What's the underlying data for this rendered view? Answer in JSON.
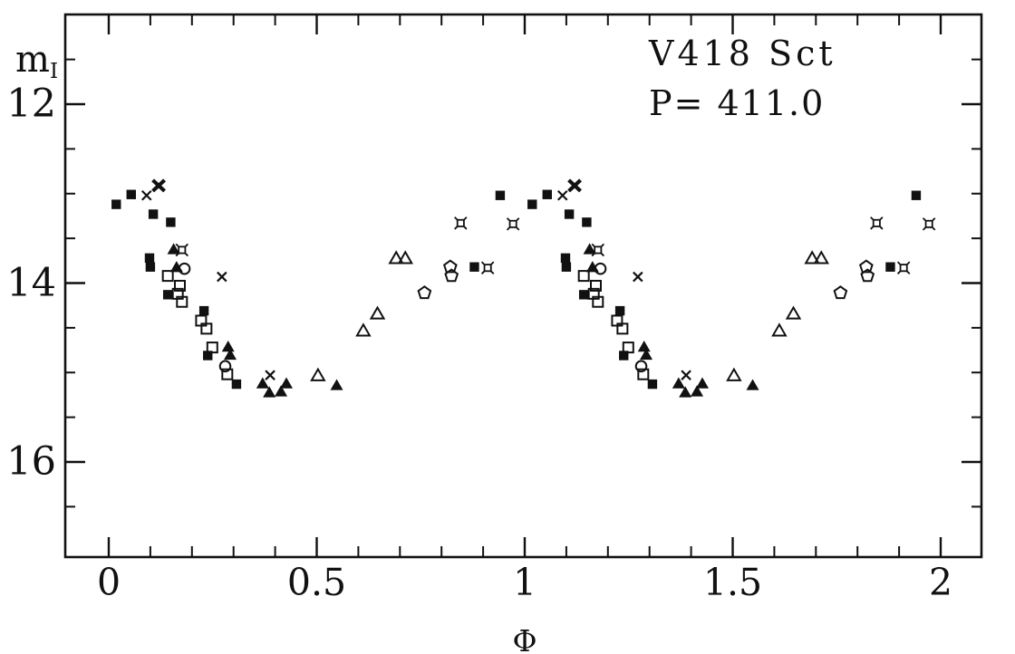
{
  "chart_data": {
    "type": "scatter",
    "title": "V418 Sct",
    "subtitle": "P= 411.0",
    "xlabel": "Φ",
    "ylabel": "m_I",
    "x_range": [
      -0.105,
      2.098
    ],
    "y_range_mag": [
      17.06,
      11.0
    ],
    "y_inverted": true,
    "phase_duplicated": true,
    "grid": false,
    "legend": "none",
    "axes": {
      "x": {
        "label": "Φ",
        "major_ticks": [
          {
            "value": 0,
            "label": "0"
          },
          {
            "value": 0.5,
            "label": "0.5"
          },
          {
            "value": 1,
            "label": "1"
          },
          {
            "value": 1.5,
            "label": "1.5"
          },
          {
            "value": 2,
            "label": "2"
          }
        ],
        "minor_tick_step": 0.1
      },
      "y": {
        "label": "m",
        "label_sub": "I",
        "major_ticks": [
          {
            "value": 12,
            "label": "12"
          },
          {
            "value": 14,
            "label": "14"
          },
          {
            "value": 16,
            "label": "16"
          }
        ],
        "minor_ticks": [
          11.5,
          12.5,
          13,
          13.5,
          14.5,
          15,
          15.5,
          16.5
        ]
      }
    },
    "series": [
      {
        "name": "filled-square",
        "marker": "filled-square",
        "color": "#111111",
        "points": [
          [
            0.018,
            13.12
          ],
          [
            0.054,
            13.01
          ],
          [
            0.098,
            13.72
          ],
          [
            0.1,
            13.82
          ],
          [
            0.107,
            13.23
          ],
          [
            0.142,
            14.13
          ],
          [
            0.149,
            13.32
          ],
          [
            0.229,
            14.31
          ],
          [
            0.238,
            14.81
          ],
          [
            0.307,
            15.13
          ],
          [
            0.879,
            13.82
          ],
          [
            0.941,
            13.02
          ]
        ]
      },
      {
        "name": "open-square",
        "marker": "open-square",
        "color": "#111111",
        "points": [
          [
            0.142,
            13.92
          ],
          [
            0.166,
            14.12
          ],
          [
            0.171,
            14.03
          ],
          [
            0.176,
            14.21
          ],
          [
            0.222,
            14.42
          ],
          [
            0.235,
            14.51
          ],
          [
            0.249,
            14.72
          ],
          [
            0.285,
            15.02
          ]
        ]
      },
      {
        "name": "filled-triangle",
        "marker": "filled-triangle",
        "color": "#111111",
        "points": [
          [
            0.156,
            13.62
          ],
          [
            0.163,
            13.82
          ],
          [
            0.287,
            14.71
          ],
          [
            0.292,
            14.8
          ],
          [
            0.37,
            15.12
          ],
          [
            0.386,
            15.22
          ],
          [
            0.414,
            15.21
          ],
          [
            0.427,
            15.12
          ],
          [
            0.548,
            15.14
          ]
        ]
      },
      {
        "name": "open-triangle",
        "marker": "open-triangle",
        "color": "#111111",
        "points": [
          [
            0.503,
            15.03
          ],
          [
            0.612,
            14.53
          ],
          [
            0.646,
            14.34
          ],
          [
            0.691,
            13.72
          ],
          [
            0.713,
            13.72
          ]
        ]
      },
      {
        "name": "open-circle",
        "marker": "open-circle",
        "color": "#111111",
        "points": [
          [
            0.182,
            13.84
          ],
          [
            0.28,
            14.93
          ]
        ]
      },
      {
        "name": "open-pentagon",
        "marker": "open-pentagon",
        "color": "#111111",
        "points": [
          [
            0.759,
            14.11
          ],
          [
            0.821,
            13.82
          ],
          [
            0.824,
            13.92
          ]
        ]
      },
      {
        "name": "cross",
        "marker": "cross",
        "color": "#111111",
        "points": [
          [
            0.091,
            13.02
          ],
          [
            0.272,
            13.93
          ],
          [
            0.388,
            15.03
          ]
        ]
      },
      {
        "name": "bold-cross",
        "marker": "bold-cross",
        "color": "#111111",
        "points": [
          [
            0.12,
            12.91
          ]
        ]
      },
      {
        "name": "four-spike-star",
        "marker": "four-spike-star",
        "color": "#111111",
        "points": [
          [
            0.176,
            13.63
          ],
          [
            0.846,
            13.33
          ],
          [
            0.911,
            13.83
          ],
          [
            0.972,
            13.34
          ]
        ]
      }
    ]
  }
}
